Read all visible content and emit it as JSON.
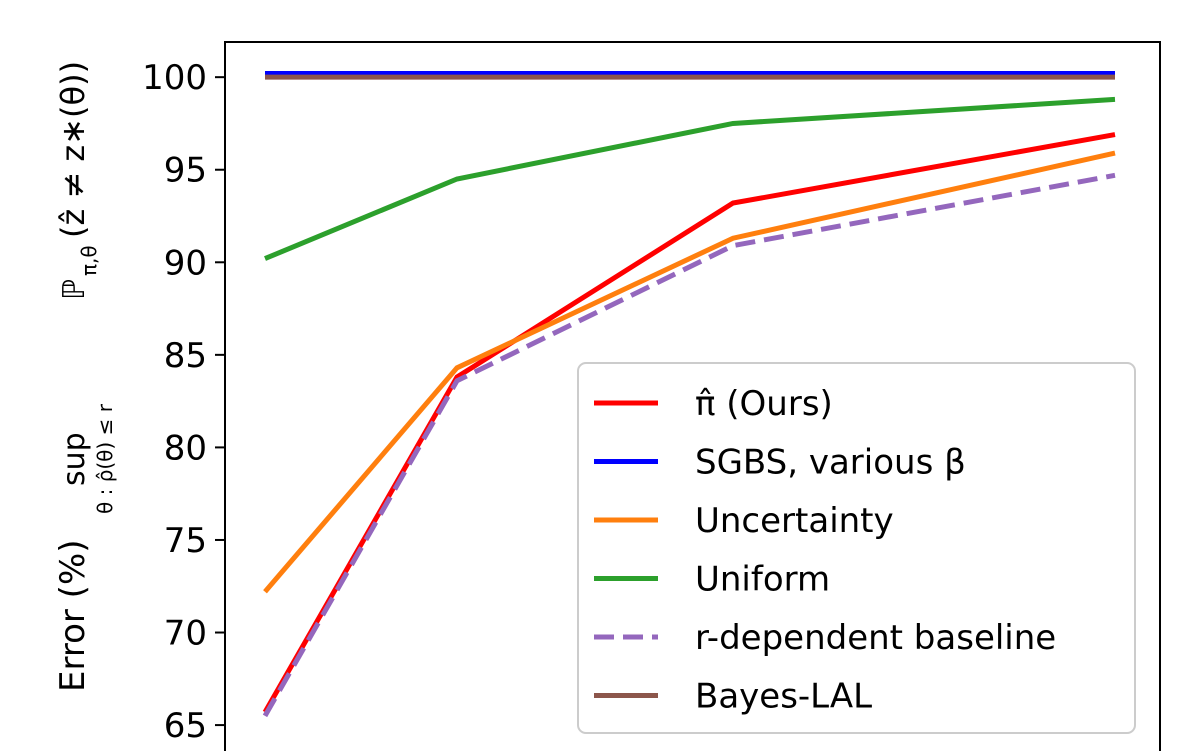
{
  "chart_data": {
    "type": "line",
    "ylabel": [
      "Error (%)",
      "sup",
      "θ : ρ̂(θ) ≤ r",
      "ℙ",
      "π,θ",
      "(ẑ ≠ z∗(θ))"
    ],
    "categories": [
      null,
      null,
      null,
      null
    ],
    "ylim": [
      63.6,
      101.9
    ],
    "yticks": [
      65,
      70,
      75,
      80,
      85,
      90,
      95,
      100
    ],
    "legend": "lower right",
    "series": [
      {
        "name": "π̂ (Ours)",
        "color": "#ff0000",
        "dash": false,
        "values": [
          65.7,
          83.8,
          93.2,
          96.9
        ]
      },
      {
        "name": "SGBS, various β",
        "color": "#0000ff",
        "dash": false,
        "values": [
          100.2,
          100.2,
          100.2,
          100.2
        ]
      },
      {
        "name": "Uncertainty",
        "color": "#ff7f0e",
        "dash": false,
        "values": [
          72.2,
          84.3,
          91.3,
          95.9
        ]
      },
      {
        "name": "Uniform",
        "color": "#2ca02c",
        "dash": false,
        "values": [
          90.2,
          94.5,
          97.5,
          98.8
        ]
      },
      {
        "name": "r-dependent baseline",
        "color": "#9467bd",
        "dash": true,
        "values": [
          65.5,
          83.6,
          90.9,
          94.7
        ]
      },
      {
        "name": "Bayes-LAL",
        "color": "#8c564b",
        "dash": false,
        "values": [
          100,
          100,
          100,
          100
        ]
      }
    ]
  }
}
